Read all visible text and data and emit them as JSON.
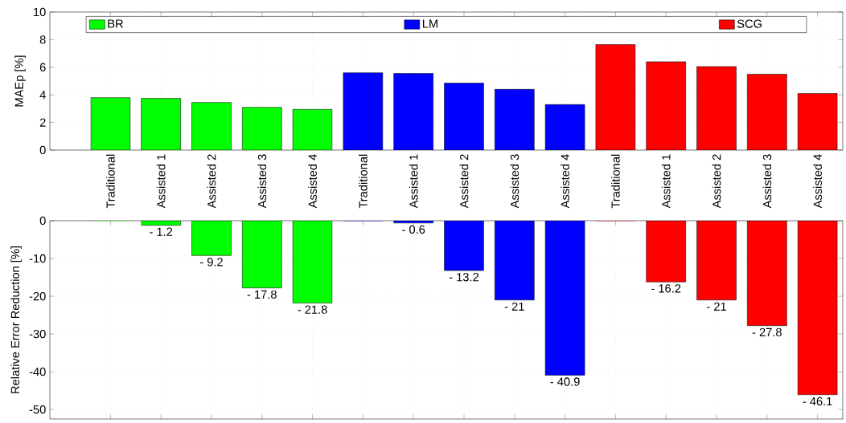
{
  "chart_data": [
    {
      "type": "bar",
      "categories": [
        "Traditional",
        "Assisted 1",
        "Assisted 2",
        "Assisted 3",
        "Assisted 4",
        "Traditional",
        "Assisted 1",
        "Assisted 2",
        "Assisted 3",
        "Assisted 4",
        "Traditional",
        "Assisted 1",
        "Assisted 2",
        "Assisted 3",
        "Assisted 4"
      ],
      "series": [
        {
          "name": "BR",
          "color": "#00ff00",
          "values": [
            3.8,
            3.75,
            3.45,
            3.1,
            2.95,
            null,
            null,
            null,
            null,
            null,
            null,
            null,
            null,
            null,
            null
          ]
        },
        {
          "name": "LM",
          "color": "#0000ff",
          "values": [
            null,
            null,
            null,
            null,
            null,
            5.6,
            5.55,
            4.85,
            4.4,
            3.3,
            null,
            null,
            null,
            null,
            null
          ]
        },
        {
          "name": "SCG",
          "color": "#ff0000",
          "values": [
            null,
            null,
            null,
            null,
            null,
            null,
            null,
            null,
            null,
            null,
            7.65,
            6.4,
            6.05,
            5.5,
            4.1
          ]
        }
      ],
      "ylabel": "MAEp [%]",
      "ylim": [
        0,
        10
      ],
      "yticks": [
        0,
        2,
        4,
        6,
        8,
        10
      ],
      "grid": true,
      "legend": "top"
    },
    {
      "type": "bar",
      "categories": [
        null,
        null,
        null,
        null,
        null,
        null,
        null,
        null,
        null,
        null,
        null,
        null,
        null,
        null,
        null
      ],
      "series": [
        {
          "color": "#00ff00",
          "values": [
            0,
            -1.2,
            -9.2,
            -17.8,
            -21.8,
            null,
            null,
            null,
            null,
            null,
            null,
            null,
            null,
            null,
            null
          ],
          "value_labels": [
            null,
            "- 1.2",
            "- 9.2",
            "- 17.8",
            "- 21.8",
            null,
            null,
            null,
            null,
            null,
            null,
            null,
            null,
            null,
            null
          ]
        },
        {
          "color": "#0000ff",
          "values": [
            null,
            null,
            null,
            null,
            null,
            0,
            -0.6,
            -13.2,
            -21,
            -40.9,
            null,
            null,
            null,
            null,
            null
          ],
          "value_labels": [
            null,
            null,
            null,
            null,
            null,
            null,
            "- 0.6",
            "- 13.2",
            "- 21",
            "- 40.9",
            null,
            null,
            null,
            null,
            null
          ]
        },
        {
          "color": "#ff0000",
          "values": [
            null,
            null,
            null,
            null,
            null,
            null,
            null,
            null,
            null,
            null,
            0,
            -16.2,
            -21,
            -27.8,
            -46.1
          ],
          "value_labels": [
            null,
            null,
            null,
            null,
            null,
            null,
            null,
            null,
            null,
            null,
            null,
            "- 16.2",
            "- 21",
            "- 27.8",
            "- 46.1"
          ]
        }
      ],
      "ylabel": "Relative Error Reduction [%]",
      "ylim": [
        -52.5,
        0
      ],
      "yticks": [
        -50,
        -40,
        -30,
        -20,
        -10,
        0
      ],
      "grid": true,
      "tick_labels": "y"
    }
  ]
}
